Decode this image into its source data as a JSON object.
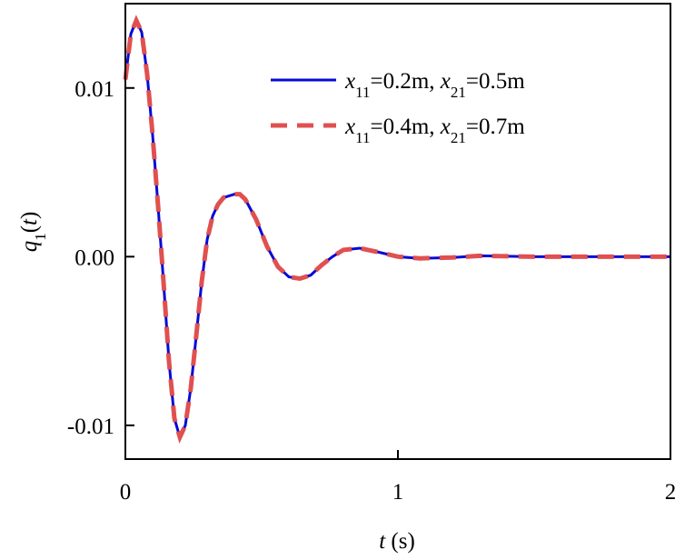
{
  "chart_data": {
    "type": "line",
    "x_label": "t (s)",
    "y_label": "q1(t)",
    "x": [
      0,
      0.02,
      0.04,
      0.06,
      0.08,
      0.1,
      0.12,
      0.14,
      0.16,
      0.18,
      0.2,
      0.22,
      0.24,
      0.26,
      0.28,
      0.3,
      0.32,
      0.34,
      0.36,
      0.4,
      0.42,
      0.44,
      0.48,
      0.52,
      0.56,
      0.6,
      0.64,
      0.68,
      0.72,
      0.76,
      0.8,
      0.86,
      0.92,
      1.0,
      1.08,
      1.2,
      1.3,
      1.5,
      1.7,
      2.0
    ],
    "series": [
      {
        "name": "x11=0.2m, x21=0.5m",
        "color": "#0a0ad2",
        "linestyle": "solid",
        "values": [
          0.0105,
          0.0132,
          0.014,
          0.0133,
          0.0108,
          0.0072,
          0.003,
          -0.0015,
          -0.0062,
          -0.0096,
          -0.0107,
          -0.01,
          -0.0078,
          -0.0047,
          -0.0015,
          0.001,
          0.0024,
          0.0031,
          0.0035,
          0.0037,
          0.0037,
          0.0034,
          0.0022,
          0.0006,
          -0.0006,
          -0.0012,
          -0.0013,
          -0.0011,
          -0.0005,
          0.0,
          0.0004,
          0.0005,
          0.0003,
          0.0,
          -0.0001,
          -5e-05,
          5e-05,
          0.0,
          0.0,
          0.0
        ]
      },
      {
        "name": "x11=0.4m, x21=0.7m",
        "color": "#e05050",
        "linestyle": "dashed",
        "values": [
          0.0105,
          0.0132,
          0.014,
          0.0133,
          0.0108,
          0.0072,
          0.003,
          -0.0015,
          -0.0062,
          -0.0096,
          -0.0107,
          -0.01,
          -0.0078,
          -0.0047,
          -0.0015,
          0.001,
          0.0024,
          0.0031,
          0.0035,
          0.0037,
          0.0037,
          0.0034,
          0.0022,
          0.0006,
          -0.0006,
          -0.0012,
          -0.0013,
          -0.0011,
          -0.0005,
          0.0,
          0.0004,
          0.0005,
          0.0003,
          0.0,
          -0.0001,
          -5e-05,
          5e-05,
          0.0,
          0.0,
          0.0
        ]
      }
    ],
    "xlim": [
      0,
      2
    ],
    "xticks": [
      0,
      1,
      2
    ],
    "ylim": [
      -0.012,
      0.015
    ],
    "yticks": [
      {
        "value": -0.01,
        "label": "-0.01"
      },
      {
        "value": 0,
        "label": "0.00"
      },
      0.01
    ],
    "grid": false,
    "legend": "upper right"
  }
}
